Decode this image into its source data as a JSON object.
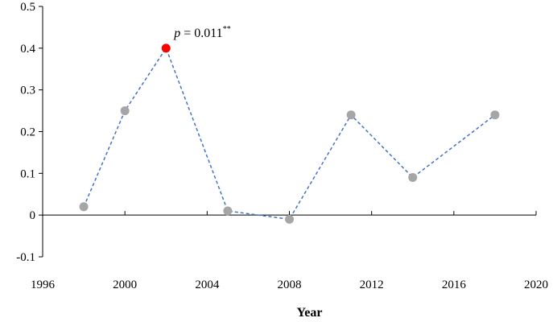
{
  "chart_data": {
    "type": "scatter",
    "title": "",
    "xlabel": "Year",
    "ylabel": "",
    "xlim": [
      1996,
      2020
    ],
    "ylim": [
      -0.1,
      0.5
    ],
    "x_ticks": [
      "1996",
      "2000",
      "2004",
      "2008",
      "2012",
      "2016",
      "2020"
    ],
    "y_ticks": [
      "-0.1",
      "0",
      "0.1",
      "0.2",
      "0.3",
      "0.4",
      "0.5"
    ],
    "grid": false,
    "legend": "none",
    "connector": "dashed",
    "series": [
      {
        "x": [
          1998,
          2000,
          2002,
          2005,
          2008,
          2011,
          2014,
          2018
        ],
        "y": [
          0.02,
          0.25,
          0.4,
          0.01,
          -0.01,
          0.24,
          0.09,
          0.24
        ]
      }
    ],
    "highlight": {
      "x": 2002,
      "y": 0.4
    },
    "annotation": {
      "italic": "p",
      "text": " = 0.011",
      "superscript": "**"
    },
    "colors": {
      "line": "#4472C4",
      "marker": "#A6A6A6",
      "highlight": "#FF0000",
      "axis": "#000000"
    }
  }
}
